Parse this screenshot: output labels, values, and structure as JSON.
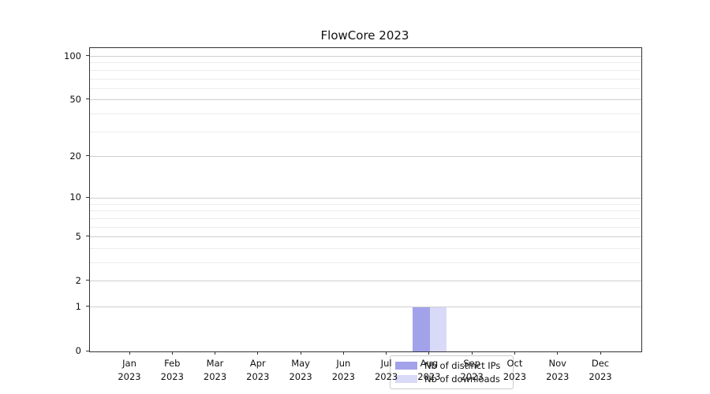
{
  "title": "FlowCore 2023",
  "chart_data": {
    "type": "bar",
    "title": "FlowCore 2023",
    "categories": [
      "Jan",
      "Feb",
      "Mar",
      "Apr",
      "May",
      "Jun",
      "Jul",
      "Aug",
      "Sep",
      "Oct",
      "Nov",
      "Dec"
    ],
    "year": "2023",
    "x_tick_labels": [
      "Jan\n2023",
      "Feb\n2023",
      "Mar\n2023",
      "Apr\n2023",
      "May\n2023",
      "Jun\n2023",
      "Jul\n2023",
      "Aug\n2023",
      "Sep\n2023",
      "Oct\n2023",
      "Nov\n2023",
      "Dec\n2023"
    ],
    "series": [
      {
        "name": "Nb of distinct IPs",
        "color": "#a2a2ea",
        "values": [
          0,
          0,
          0,
          0,
          0,
          0,
          0,
          1,
          0,
          0,
          0,
          0
        ]
      },
      {
        "name": "Nb of downloads",
        "color": "#d9d9f8",
        "values": [
          0,
          0,
          0,
          0,
          0,
          0,
          0,
          1,
          0,
          0,
          0,
          0
        ]
      }
    ],
    "xlabel": "",
    "ylabel": "",
    "yscale": "log1p",
    "ylim": [
      0,
      113
    ],
    "y_major_ticks": [
      0,
      1,
      2,
      5,
      10,
      20,
      50,
      100
    ],
    "y_minor_gridlines": [
      3,
      4,
      6,
      7,
      8,
      9,
      30,
      40,
      60,
      70,
      80,
      90
    ],
    "grid": true,
    "legend_position": "lower center inside"
  },
  "colors": {
    "bar_distinct_ips": "#a2a2ea",
    "bar_downloads": "#d9d9f8",
    "grid_major": "#cfcfcf",
    "grid_minor": "#ececec",
    "spine": "#333333",
    "legend_border": "#cccccc",
    "text": "#111111"
  }
}
